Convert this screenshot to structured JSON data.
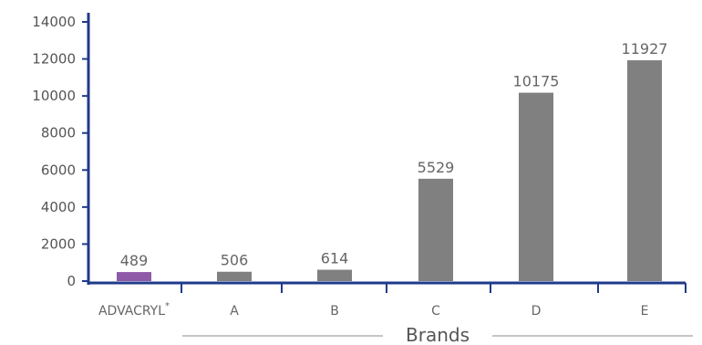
{
  "chart_data": {
    "type": "bar",
    "title": "",
    "xlabel": "Brands",
    "ylabel": "",
    "ylim": [
      0,
      14000
    ],
    "yticks": [
      0,
      2000,
      4000,
      6000,
      8000,
      10000,
      12000,
      14000
    ],
    "categories": [
      "ADVACRYL",
      "A",
      "B",
      "C",
      "D",
      "E"
    ],
    "category_superscripts": [
      "*",
      "",
      "",
      "",
      "",
      ""
    ],
    "values": [
      489,
      506,
      614,
      5529,
      10175,
      11927
    ],
    "data_labels": [
      "489",
      "506",
      "614",
      "5529",
      "10175",
      "11927"
    ],
    "grid": false,
    "legend": "none"
  },
  "colors": {
    "highlight_bar": "#8e5aa8",
    "bar": "#808080",
    "axis": "#1f3a8a",
    "bracket_line": "#b0b0b0",
    "highlight_label": "#8e5aa8"
  }
}
